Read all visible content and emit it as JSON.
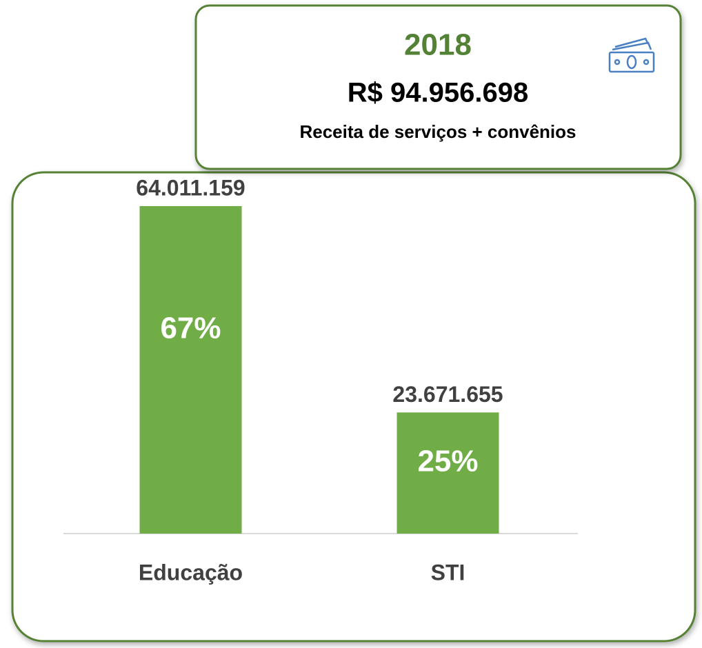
{
  "header": {
    "year": "2018",
    "total": "R$ 94.956.698",
    "subtitle": "Receita de serviços + convênios"
  },
  "chart_data": {
    "type": "bar",
    "categories": [
      "Educação",
      "STI"
    ],
    "values": [
      64011159,
      23671655
    ],
    "value_labels": [
      "64.011.159",
      "23.671.655"
    ],
    "percent_labels": [
      "67%",
      "25%"
    ],
    "color": "#70ad47",
    "ylim": [
      0,
      70000000
    ]
  }
}
